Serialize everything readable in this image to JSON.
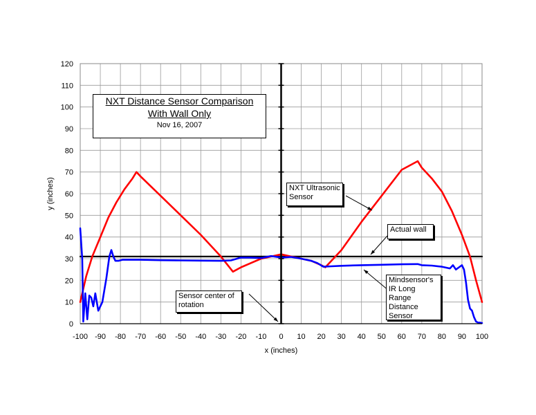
{
  "chart_data": {
    "type": "line",
    "title": "NXT Distance Sensor Comparison",
    "subtitle": "With Wall Only",
    "date": "Nov 16, 2007",
    "xlabel": "x (inches)",
    "ylabel": "y (inches)",
    "xlim": [
      -100,
      100
    ],
    "ylim": [
      0,
      120
    ],
    "xticks": [
      -100,
      -90,
      -80,
      -70,
      -60,
      -50,
      -40,
      -30,
      -20,
      -10,
      0,
      10,
      20,
      30,
      40,
      50,
      60,
      70,
      80,
      90,
      100
    ],
    "yticks": [
      0,
      10,
      20,
      30,
      40,
      50,
      60,
      70,
      80,
      90,
      100,
      110,
      120
    ],
    "grid": true,
    "series": [
      {
        "name": "NXT Ultrasonic Sensor",
        "color": "#ff0000",
        "x": [
          -100,
          -97,
          -94,
          -90,
          -86,
          -82,
          -78,
          -74,
          -72,
          -70,
          -60,
          -50,
          -40,
          -30,
          -24,
          -20,
          -10,
          -5,
          0,
          5,
          10,
          15,
          20,
          22,
          30,
          40,
          50,
          60,
          66,
          68,
          70,
          75,
          80,
          85,
          90,
          94,
          97,
          100
        ],
        "y": [
          10,
          22,
          31,
          40,
          49,
          56,
          62,
          67,
          70,
          68,
          59,
          50,
          41,
          31,
          24,
          26,
          30,
          31,
          32,
          31,
          30,
          29,
          27,
          26,
          34,
          47,
          59,
          71,
          74,
          75,
          72,
          67,
          61,
          52,
          41,
          31,
          20,
          10
        ]
      },
      {
        "name": "Mindsensor's IR Long Range Distance Sensor",
        "color": "#0000ff",
        "x": [
          -100,
          -99,
          -98.5,
          -97.5,
          -96.5,
          -95.5,
          -94.5,
          -93.5,
          -92.5,
          -91,
          -89,
          -87,
          -85.5,
          -84.5,
          -83.5,
          -82.5,
          -81,
          -79,
          -76,
          -70,
          -60,
          -50,
          -40,
          -30,
          -25,
          -22,
          -20,
          -15,
          -10,
          -5,
          0,
          5,
          10,
          15,
          18,
          21,
          25,
          30,
          40,
          50,
          60,
          68,
          70,
          75,
          80,
          84,
          85.5,
          87,
          88.5,
          90,
          91,
          92,
          93,
          94,
          95,
          96,
          97,
          98,
          99,
          100
        ],
        "y": [
          44,
          30,
          1,
          14,
          2,
          13,
          12,
          8,
          14,
          6,
          10,
          21,
          31,
          34,
          31,
          29,
          29,
          29.5,
          29.5,
          29.5,
          29.3,
          29.2,
          29.1,
          29,
          29.2,
          30,
          30.5,
          30.5,
          30.3,
          31.2,
          30.5,
          30.8,
          30,
          29,
          28,
          26.3,
          26.5,
          26.7,
          27,
          27.2,
          27.4,
          27.5,
          27,
          26.8,
          26.3,
          25.5,
          27,
          25,
          26,
          27,
          25,
          19,
          11,
          7,
          6,
          3,
          1,
          0.5,
          0.5,
          0.3
        ]
      },
      {
        "name": "Actual wall",
        "color": "#000000",
        "x": [
          -100,
          100
        ],
        "y": [
          31,
          31
        ]
      }
    ]
  },
  "annotations": {
    "ultrasonic": "NXT Ultrasonic Sensor",
    "wall": "Actual wall",
    "ir": "Mindsensor's IR Long Range Distance Sensor",
    "center": "Sensor center of rotation"
  }
}
